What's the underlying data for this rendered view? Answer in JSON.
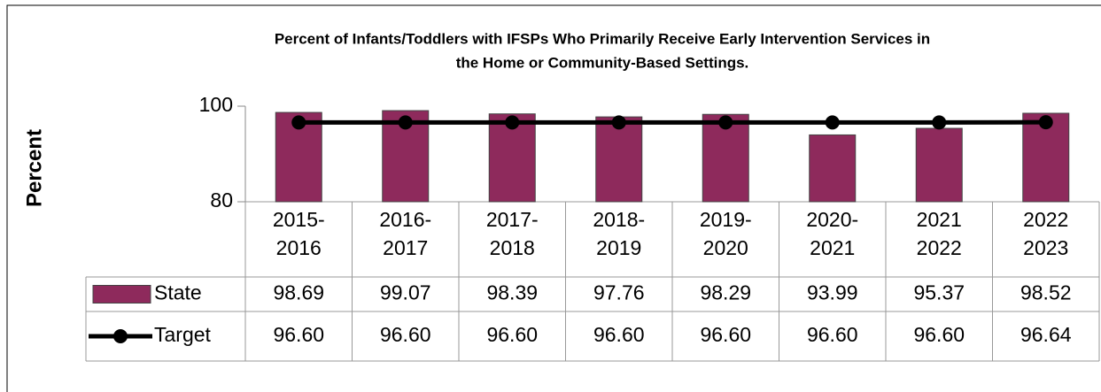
{
  "chart_data": {
    "type": "bar",
    "title": [
      "Percent of Infants/Toddlers with IFSPs Who Primarily Receive Early Intervention Services in",
      "the Home or Community-Based Settings."
    ],
    "y_label": "Percent",
    "categories": [
      [
        "2015-",
        "2016"
      ],
      [
        "2016-",
        "2017"
      ],
      [
        "2017-",
        "2018"
      ],
      [
        "2018-",
        "2019"
      ],
      [
        "2019-",
        "2020"
      ],
      [
        "2020-",
        "2021"
      ],
      [
        "2021",
        "2022"
      ],
      [
        "2022",
        "2023"
      ]
    ],
    "series": [
      {
        "name": "State",
        "type": "bar",
        "color": "#8e2a5c",
        "values": [
          98.69,
          99.07,
          98.39,
          97.76,
          98.29,
          93.99,
          95.37,
          98.52
        ]
      },
      {
        "name": "Target",
        "type": "line",
        "color": "#000000",
        "values": [
          96.6,
          96.6,
          96.6,
          96.6,
          96.6,
          96.6,
          96.6,
          96.64
        ],
        "value_labels": [
          "96.60",
          "96.60",
          "96.60",
          "96.60",
          "96.60",
          "96.60",
          "96.60",
          "96.64"
        ]
      }
    ],
    "ylim": [
      80,
      100
    ],
    "yticks": [
      80,
      100
    ]
  }
}
